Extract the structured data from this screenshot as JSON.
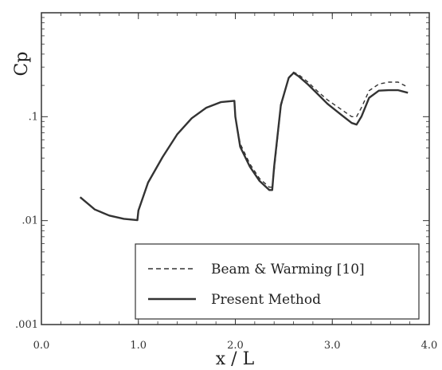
{
  "chart_data": {
    "type": "line",
    "title": "",
    "xlabel": "x / L",
    "ylabel": "Cp",
    "x_scale": "linear",
    "y_scale": "log",
    "xlim": [
      0.0,
      4.0
    ],
    "ylim": [
      0.001,
      1.0
    ],
    "x_ticks": [
      0.0,
      1.0,
      2.0,
      3.0,
      4.0
    ],
    "x_tick_labels": [
      "0.0",
      "1.0",
      "2.0",
      "3.0",
      "4.0"
    ],
    "y_ticks": [
      0.001,
      0.01,
      0.1
    ],
    "y_tick_labels": [
      ".001",
      ".01",
      ".1"
    ],
    "grid": false,
    "legend_position": "bottom-right",
    "series": [
      {
        "name": "Beam & Warming [10]",
        "style": "dashed",
        "color": "#333333",
        "x": [
          0.4,
          0.55,
          0.7,
          0.85,
          0.99,
          1.0,
          1.1,
          1.25,
          1.4,
          1.55,
          1.7,
          1.85,
          1.99,
          2.0,
          2.05,
          2.15,
          2.25,
          2.35,
          2.38,
          2.4,
          2.47,
          2.55,
          2.6,
          2.65,
          2.75,
          2.85,
          2.95,
          3.1,
          3.2,
          3.25,
          3.3,
          3.38,
          3.48,
          3.58,
          3.68,
          3.78
        ],
        "y": [
          0.0168,
          0.0128,
          0.0112,
          0.0104,
          0.0101,
          0.0125,
          0.0232,
          0.0409,
          0.0675,
          0.0966,
          0.1219,
          0.138,
          0.1421,
          0.1,
          0.055,
          0.0351,
          0.0254,
          0.021,
          0.021,
          0.03,
          0.125,
          0.239,
          0.268,
          0.255,
          0.215,
          0.175,
          0.145,
          0.116,
          0.1,
          0.1,
          0.122,
          0.178,
          0.206,
          0.215,
          0.215,
          0.192
        ]
      },
      {
        "name": "Present Method",
        "style": "solid",
        "color": "#333333",
        "x": [
          0.4,
          0.55,
          0.7,
          0.85,
          0.99,
          1.0,
          1.1,
          1.25,
          1.4,
          1.55,
          1.7,
          1.85,
          1.99,
          2.0,
          2.05,
          2.15,
          2.25,
          2.35,
          2.38,
          2.4,
          2.47,
          2.55,
          2.6,
          2.65,
          2.75,
          2.85,
          2.95,
          3.1,
          3.2,
          3.25,
          3.3,
          3.38,
          3.48,
          3.58,
          3.68,
          3.78
        ],
        "y": [
          0.0168,
          0.0128,
          0.0112,
          0.0104,
          0.0101,
          0.0125,
          0.0232,
          0.0409,
          0.0675,
          0.0966,
          0.1219,
          0.138,
          0.1421,
          0.1,
          0.0513,
          0.033,
          0.0241,
          0.0197,
          0.0197,
          0.033,
          0.13,
          0.236,
          0.264,
          0.246,
          0.204,
          0.165,
          0.133,
          0.103,
          0.087,
          0.084,
          0.1,
          0.152,
          0.178,
          0.18,
          0.18,
          0.17
        ]
      }
    ]
  }
}
